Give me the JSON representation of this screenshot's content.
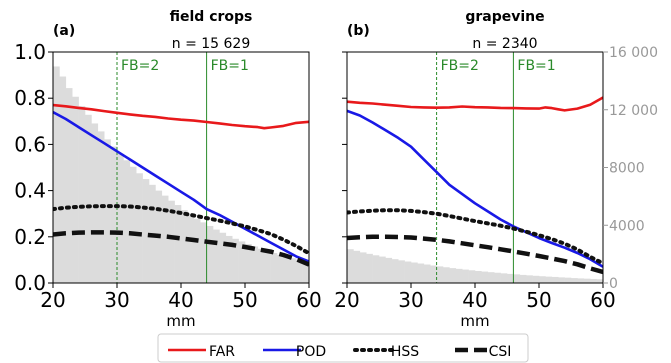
{
  "chart_data": [
    {
      "type": "line",
      "panel_label": "(a)",
      "title": "field crops",
      "subtitle": "n = 15 629",
      "xlabel": "mm",
      "xlim": [
        20,
        60
      ],
      "ylim": [
        0.0,
        1.0
      ],
      "x_ticks": [
        20,
        30,
        40,
        50,
        60
      ],
      "y_ticks": [
        "0.0",
        "0.2",
        "0.4",
        "0.6",
        "0.8",
        "1.0"
      ],
      "secondary_ylim": [
        0,
        16000
      ],
      "histogram": {
        "bin_edges_start": 20,
        "bin_width": 1,
        "counts": [
          15000,
          14300,
          13500,
          12900,
          12250,
          11650,
          11050,
          10500,
          9950,
          9450,
          8950,
          8500,
          8050,
          7600,
          7200,
          6800,
          6400,
          6050,
          5700,
          5400,
          5050,
          4750,
          4450,
          4200,
          3950,
          3700,
          3480,
          3260,
          3060,
          2880,
          2700,
          2530,
          2370,
          2220,
          2080,
          1950,
          1830,
          1710,
          1600,
          1500
        ]
      },
      "vlines": [
        {
          "x": 30,
          "label": "FB=2",
          "style": "dashed"
        },
        {
          "x": 44,
          "label": "FB=1",
          "style": "solid"
        }
      ],
      "series": [
        {
          "name": "FAR",
          "x": [
            20,
            22,
            24,
            26,
            28,
            30,
            32,
            34,
            36,
            38,
            40,
            42,
            44,
            46,
            48,
            50,
            52,
            53,
            54,
            56,
            58,
            60
          ],
          "values": [
            0.77,
            0.765,
            0.758,
            0.752,
            0.744,
            0.737,
            0.73,
            0.724,
            0.719,
            0.712,
            0.707,
            0.703,
            0.697,
            0.691,
            0.684,
            0.679,
            0.675,
            0.67,
            0.673,
            0.68,
            0.693,
            0.698
          ]
        },
        {
          "name": "POD",
          "x": [
            20,
            22,
            24,
            26,
            28,
            30,
            32,
            34,
            36,
            38,
            40,
            42,
            44,
            46,
            48,
            50,
            52,
            54,
            56,
            58,
            60
          ],
          "values": [
            0.74,
            0.71,
            0.675,
            0.64,
            0.605,
            0.57,
            0.535,
            0.5,
            0.465,
            0.43,
            0.395,
            0.36,
            0.32,
            0.295,
            0.265,
            0.235,
            0.205,
            0.175,
            0.145,
            0.115,
            0.093
          ]
        },
        {
          "name": "HSS",
          "x": [
            20,
            22,
            24,
            26,
            28,
            30,
            32,
            34,
            36,
            38,
            40,
            42,
            44,
            46,
            48,
            50,
            52,
            54,
            56,
            58,
            60
          ],
          "values": [
            0.32,
            0.326,
            0.33,
            0.332,
            0.333,
            0.333,
            0.331,
            0.327,
            0.321,
            0.313,
            0.303,
            0.292,
            0.281,
            0.27,
            0.258,
            0.245,
            0.229,
            0.212,
            0.188,
            0.16,
            0.128
          ]
        },
        {
          "name": "CSI",
          "x": [
            20,
            22,
            24,
            26,
            28,
            30,
            32,
            34,
            36,
            38,
            40,
            42,
            44,
            46,
            48,
            50,
            52,
            54,
            56,
            58,
            60
          ],
          "values": [
            0.21,
            0.215,
            0.218,
            0.219,
            0.219,
            0.218,
            0.215,
            0.21,
            0.205,
            0.2,
            0.193,
            0.186,
            0.179,
            0.172,
            0.165,
            0.156,
            0.146,
            0.136,
            0.121,
            0.103,
            0.08
          ]
        }
      ]
    },
    {
      "type": "line",
      "panel_label": "(b)",
      "title": "grapevine",
      "subtitle": "n = 2340",
      "xlabel": "mm",
      "xlim": [
        20,
        60
      ],
      "ylim": [
        0.0,
        1.0
      ],
      "x_ticks": [
        20,
        30,
        40,
        50,
        60
      ],
      "secondary_ylim": [
        0,
        16000
      ],
      "secondary_y_ticks": [
        "0",
        "4000",
        "8000",
        "12 000",
        "16 000"
      ],
      "histogram": {
        "bin_edges_start": 20,
        "bin_width": 1,
        "counts": [
          2340,
          2230,
          2120,
          2020,
          1920,
          1830,
          1740,
          1650,
          1570,
          1490,
          1420,
          1350,
          1280,
          1210,
          1150,
          1090,
          1030,
          980,
          930,
          880,
          830,
          790,
          750,
          710,
          670,
          630,
          600,
          560,
          530,
          500,
          470,
          440,
          420,
          390,
          370,
          340,
          320,
          300,
          280,
          260
        ]
      },
      "vlines": [
        {
          "x": 34,
          "label": "FB=2",
          "style": "dashed"
        },
        {
          "x": 46,
          "label": "FB=1",
          "style": "solid"
        }
      ],
      "series": [
        {
          "name": "FAR",
          "x": [
            20,
            22,
            24,
            26,
            28,
            30,
            32,
            34,
            36,
            38,
            40,
            42,
            44,
            46,
            48,
            50,
            51,
            52,
            53,
            54,
            56,
            58,
            60
          ],
          "values": [
            0.785,
            0.78,
            0.777,
            0.772,
            0.767,
            0.762,
            0.76,
            0.759,
            0.76,
            0.764,
            0.761,
            0.76,
            0.758,
            0.757,
            0.756,
            0.755,
            0.76,
            0.757,
            0.752,
            0.747,
            0.755,
            0.772,
            0.803
          ]
        },
        {
          "name": "POD",
          "x": [
            20,
            22,
            24,
            26,
            28,
            30,
            32,
            34,
            36,
            38,
            40,
            42,
            44,
            46,
            48,
            50,
            52,
            54,
            56,
            58,
            60
          ],
          "values": [
            0.745,
            0.725,
            0.695,
            0.662,
            0.628,
            0.59,
            0.535,
            0.48,
            0.425,
            0.385,
            0.345,
            0.31,
            0.275,
            0.245,
            0.22,
            0.195,
            0.173,
            0.153,
            0.13,
            0.103,
            0.07
          ]
        },
        {
          "name": "HSS",
          "x": [
            20,
            22,
            24,
            26,
            28,
            30,
            32,
            34,
            36,
            38,
            40,
            42,
            44,
            46,
            48,
            50,
            52,
            54,
            56,
            58,
            60
          ],
          "values": [
            0.305,
            0.31,
            0.313,
            0.315,
            0.315,
            0.312,
            0.307,
            0.3,
            0.29,
            0.279,
            0.268,
            0.258,
            0.248,
            0.236,
            0.222,
            0.207,
            0.19,
            0.17,
            0.145,
            0.113,
            0.085
          ]
        },
        {
          "name": "CSI",
          "x": [
            20,
            22,
            24,
            26,
            28,
            30,
            32,
            34,
            36,
            38,
            40,
            42,
            44,
            46,
            48,
            50,
            52,
            54,
            56,
            58,
            60
          ],
          "values": [
            0.195,
            0.198,
            0.2,
            0.2,
            0.199,
            0.197,
            0.192,
            0.187,
            0.18,
            0.172,
            0.163,
            0.155,
            0.146,
            0.137,
            0.127,
            0.117,
            0.106,
            0.095,
            0.081,
            0.063,
            0.048
          ]
        }
      ]
    }
  ],
  "legend": [
    {
      "name": "FAR",
      "color": "#e8191b",
      "style": "solid"
    },
    {
      "name": "POD",
      "color": "#1919e6",
      "style": "solid"
    },
    {
      "name": "HSS",
      "color": "#111111",
      "style": "dotted"
    },
    {
      "name": "CSI",
      "color": "#111111",
      "style": "dashed"
    }
  ],
  "colors": {
    "histogram": "#dcdcdc",
    "vline": "#2a8a2a",
    "secondary_axis": "#999999"
  }
}
